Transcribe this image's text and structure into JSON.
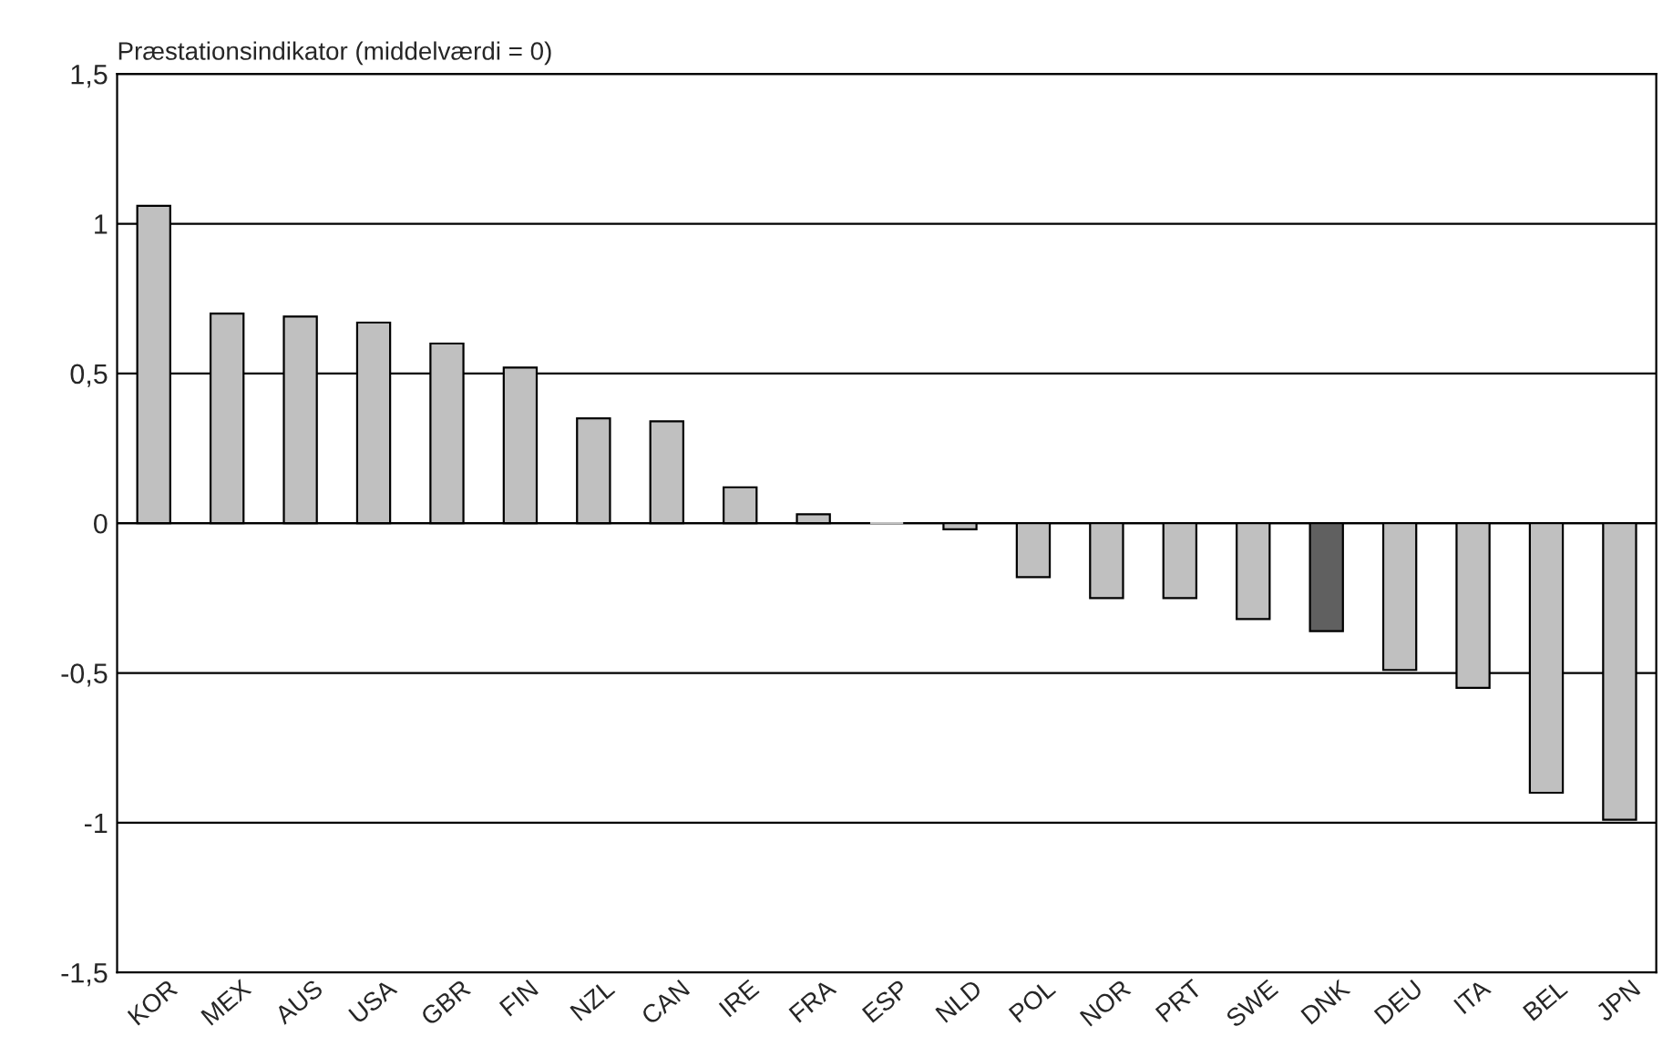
{
  "chart_data": {
    "type": "bar",
    "ylabel": "Præstationsindikator (middelværdi = 0)",
    "categories": [
      "KOR",
      "MEX",
      "AUS",
      "USA",
      "GBR",
      "FIN",
      "NZL",
      "CAN",
      "IRE",
      "FRA",
      "ESP",
      "NLD",
      "POL",
      "NOR",
      "PRT",
      "SWE",
      "DNK",
      "DEU",
      "ITA",
      "BEL",
      "JPN"
    ],
    "values": [
      1.06,
      0.7,
      0.69,
      0.67,
      0.6,
      0.52,
      0.35,
      0.34,
      0.12,
      0.03,
      0.0,
      -0.02,
      -0.18,
      -0.25,
      -0.25,
      -0.32,
      -0.36,
      -0.49,
      -0.55,
      -0.9,
      -0.99
    ],
    "colors": [
      "#c0c0c0",
      "#c0c0c0",
      "#c0c0c0",
      "#c0c0c0",
      "#c0c0c0",
      "#c0c0c0",
      "#c0c0c0",
      "#c0c0c0",
      "#c0c0c0",
      "#c0c0c0",
      "#c0c0c0",
      "#c0c0c0",
      "#c0c0c0",
      "#c0c0c0",
      "#c0c0c0",
      "#c0c0c0",
      "#606060",
      "#c0c0c0",
      "#c0c0c0",
      "#c0c0c0",
      "#c0c0c0"
    ],
    "ylim": [
      -1.5,
      1.5
    ],
    "yticks": [
      {
        "value": -1.5,
        "label": "-1,5"
      },
      -1,
      {
        "value": -0.5,
        "label": "-0,5"
      },
      0,
      {
        "value": 0.5,
        "label": "0,5"
      },
      1,
      {
        "value": 1.5,
        "label": "1,5"
      }
    ],
    "grid": "y",
    "legend": false
  }
}
